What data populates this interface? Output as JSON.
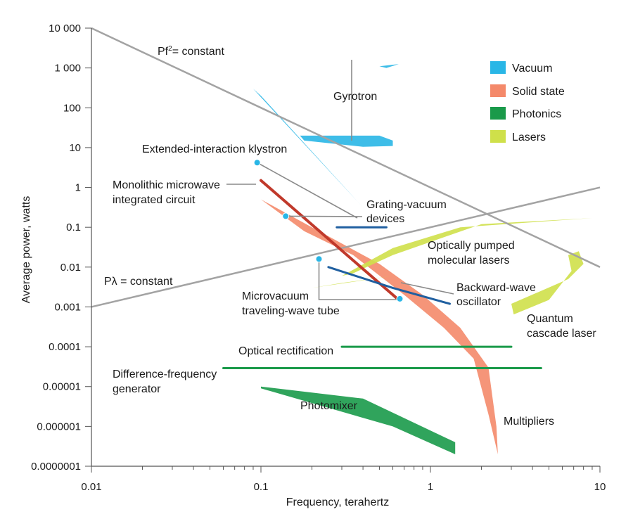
{
  "chart_data": {
    "type": "scatter",
    "xlabel": "Frequency, terahertz",
    "ylabel": "Average power, watts",
    "x_scale": "log",
    "y_scale": "log",
    "xlim": [
      0.01,
      10
    ],
    "ylim": [
      1e-07,
      10000
    ],
    "grid": false,
    "legend_position": "top-right",
    "x_ticks": [
      {
        "value": 0.01,
        "label": "0.01"
      },
      {
        "value": 0.1,
        "label": "0.1"
      },
      {
        "value": 1,
        "label": "1"
      },
      {
        "value": 10,
        "label": "10"
      }
    ],
    "y_ticks": [
      {
        "value": 10000,
        "label": "10 000"
      },
      {
        "value": 1000,
        "label": "1 000"
      },
      {
        "value": 100,
        "label": "100"
      },
      {
        "value": 10,
        "label": "10"
      },
      {
        "value": 1,
        "label": "1"
      },
      {
        "value": 0.1,
        "label": "0.1"
      },
      {
        "value": 0.01,
        "label": "0.01"
      },
      {
        "value": 0.001,
        "label": "0.001"
      },
      {
        "value": 0.0001,
        "label": "0.0001"
      },
      {
        "value": 1e-05,
        "label": "0.00001"
      },
      {
        "value": 1e-06,
        "label": "0.000001"
      },
      {
        "value": 1e-07,
        "label": "0.0000001"
      }
    ],
    "legend": [
      {
        "label": "Vacuum",
        "color": "#29b6e6"
      },
      {
        "label": "Solid state",
        "color": "#f4896a"
      },
      {
        "label": "Photonics",
        "color": "#1a9a4a"
      },
      {
        "label": "Lasers",
        "color": "#cfe04a"
      }
    ],
    "reference_lines": [
      {
        "label": "Pf",
        "superscript": "2",
        "label_rest": "= constant",
        "points": [
          [
            0.01,
            10000
          ],
          [
            10,
            0.01
          ]
        ],
        "color": "#a3a3a3"
      },
      {
        "label": "Pλ = constant",
        "points": [
          [
            0.01,
            0.001
          ],
          [
            10,
            1
          ]
        ],
        "color": "#a3a3a3"
      }
    ],
    "regions": [
      {
        "name": "Solid state",
        "color": "#f4896a",
        "points": [
          [
            0.1,
            0.5
          ],
          [
            0.2,
            0.1
          ],
          [
            0.5,
            0.012
          ],
          [
            0.9,
            0.002
          ],
          [
            1.5,
            0.0003
          ],
          [
            2.2,
            3e-05
          ],
          [
            2.45,
            1e-06
          ],
          [
            2.5,
            2e-07
          ],
          [
            2.2,
            2e-06
          ],
          [
            1.8,
            5e-05
          ],
          [
            1.2,
            0.0003
          ],
          [
            0.7,
            0.002
          ],
          [
            0.35,
            0.02
          ],
          [
            0.18,
            0.08
          ],
          [
            0.1,
            0.5
          ]
        ]
      },
      {
        "name": "Gyrotron",
        "color": "#29b6e6",
        "points": [
          [
            0.17,
            20
          ],
          [
            0.5,
            20
          ],
          [
            0.6,
            15
          ],
          [
            0.6,
            11
          ],
          [
            0.4,
            10.5
          ],
          [
            0.18,
            15
          ]
        ]
      },
      {
        "name": "Gyrotron top",
        "color": "#29b6e6",
        "points": [
          [
            0.5,
            1100
          ],
          [
            0.65,
            1250
          ],
          [
            0.55,
            1000
          ]
        ]
      },
      {
        "name": "Vacuum wedge",
        "color": "#29b6e6",
        "points": [
          [
            0.1,
            200
          ],
          [
            0.42,
            0.25
          ],
          [
            0.38,
            0.4
          ],
          [
            0.09,
            300
          ]
        ]
      },
      {
        "name": "Photonics band",
        "color": "#1a9a4a",
        "points": [
          [
            0.1,
            1e-05
          ],
          [
            0.4,
            5e-06
          ],
          [
            1.4,
            4e-07
          ],
          [
            1.4,
            2e-07
          ],
          [
            0.6,
            1e-06
          ],
          [
            0.1,
            9e-06
          ]
        ]
      },
      {
        "name": "Optically pumped molecular lasers",
        "color": "#cfe04a",
        "points": [
          [
            0.3,
            0.006
          ],
          [
            0.6,
            0.03
          ],
          [
            1.5,
            0.1
          ],
          [
            9,
            0.17
          ],
          [
            2,
            0.12
          ],
          [
            0.6,
            0.02
          ],
          [
            0.35,
            0.007
          ]
        ]
      },
      {
        "name": "Lasers faint",
        "color": "#cfe04a",
        "points": [
          [
            0.2,
            0.003
          ],
          [
            0.6,
            0.006
          ],
          [
            0.3,
            0.004
          ]
        ]
      },
      {
        "name": "Quantum cascade laser",
        "color": "#cfe04a",
        "points": [
          [
            3,
            0.0012
          ],
          [
            6.5,
            0.005
          ],
          [
            8,
            0.012
          ],
          [
            7.5,
            0.025
          ],
          [
            6.5,
            0.02
          ],
          [
            6.8,
            0.008
          ],
          [
            5,
            0.0015
          ],
          [
            3.1,
            0.00065
          ]
        ]
      }
    ],
    "lines": [
      {
        "name": "Monolithic microwave integrated circuit",
        "color": "#c0392b",
        "width": 4,
        "points": [
          [
            0.1,
            1.5
          ],
          [
            0.65,
            0.0015
          ]
        ]
      },
      {
        "name": "Backward-wave oscillator",
        "color": "#1f5fa0",
        "width": 3,
        "points": [
          [
            0.25,
            0.01
          ],
          [
            0.6,
            0.003
          ],
          [
            1.3,
            0.0012
          ]
        ]
      },
      {
        "name": "Grating-vacuum devices",
        "color": "#1f5fa0",
        "width": 3,
        "points": [
          [
            0.28,
            0.1
          ],
          [
            0.55,
            0.1
          ]
        ]
      },
      {
        "name": "Optical rectification",
        "color": "#1a9a4a",
        "width": 3,
        "points": [
          [
            0.3,
            0.0001
          ],
          [
            3,
            0.0001
          ]
        ]
      },
      {
        "name": "Difference-frequency generator",
        "color": "#1a9a4a",
        "width": 3,
        "points": [
          [
            0.06,
            2.9e-05
          ],
          [
            4.5,
            2.9e-05
          ]
        ]
      }
    ],
    "points": [
      {
        "name": "Extended-interaction klystron",
        "x": 0.095,
        "y": 4.2
      },
      {
        "name": "Grating-vacuum device point",
        "x": 0.14,
        "y": 0.19
      },
      {
        "name": "Microvacuum traveling-wave tube",
        "x": 0.22,
        "y": 0.016
      },
      {
        "name": "Microvacuum end point",
        "x": 0.66,
        "y": 0.0016
      }
    ],
    "annotations": [
      {
        "text": "Gyrotron"
      },
      {
        "text": "Extended-interaction klystron"
      },
      {
        "text": "Monolithic microwave",
        "text2": "integrated circuit"
      },
      {
        "text": "Grating-vacuum",
        "text2": "devices"
      },
      {
        "text": "Optically pumped",
        "text2": "molecular lasers"
      },
      {
        "text": "Backward-wave",
        "text2": "oscillator"
      },
      {
        "text": "Microvacuum",
        "text2": "traveling-wave tube"
      },
      {
        "text": "Quantum",
        "text2": "cascade laser"
      },
      {
        "text": "Optical rectification"
      },
      {
        "text": "Difference-frequency",
        "text2": "generator"
      },
      {
        "text": "Photomixer"
      },
      {
        "text": "Multipliers"
      }
    ]
  }
}
